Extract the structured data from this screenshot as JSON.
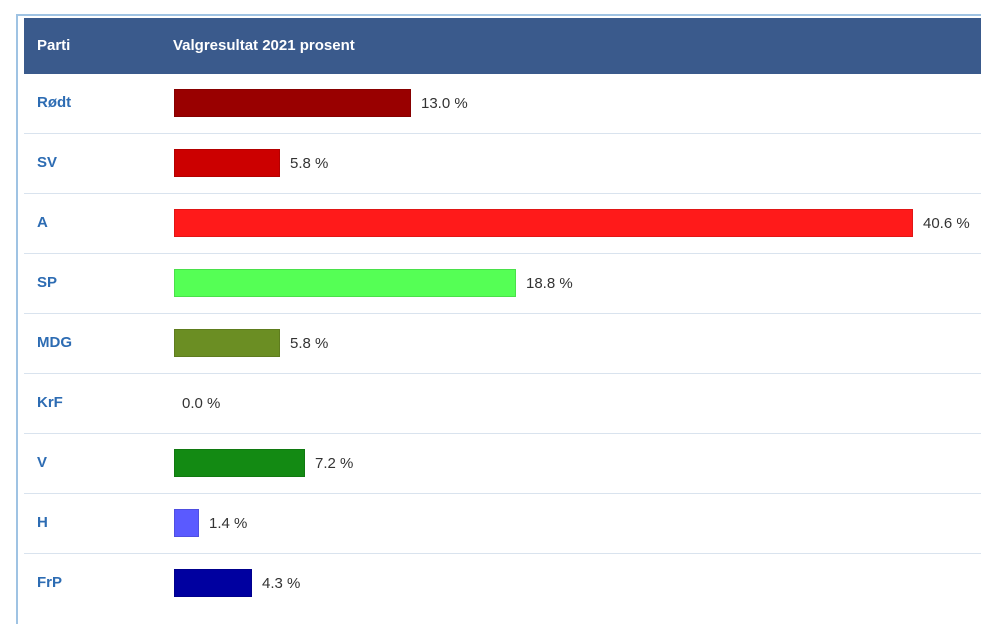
{
  "table": {
    "header_party": "Parti",
    "header_result": "Valgresultat 2021 prosent"
  },
  "chart_data": {
    "type": "bar",
    "orientation": "horizontal",
    "title": "",
    "xlabel": "",
    "ylabel": "",
    "xlim": [
      0,
      40.6
    ],
    "categories": [
      "Rødt",
      "SV",
      "A",
      "SP",
      "MDG",
      "KrF",
      "V",
      "H",
      "FrP"
    ],
    "values": [
      13.0,
      5.8,
      40.6,
      18.8,
      5.8,
      0.0,
      7.2,
      1.4,
      4.3
    ],
    "labels": [
      "13.0 %",
      "5.8 %",
      "40.6 %",
      "18.8 %",
      "5.8 %",
      "0.0 %",
      "7.2 %",
      "1.4 %",
      "4.3 %"
    ],
    "colors": [
      "#990000",
      "#cc0000",
      "#ff1a1a",
      "#55ff55",
      "#6b8e23",
      "#ffff00",
      "#138a13",
      "#5a5aff",
      "#0000a0"
    ],
    "grid": false,
    "legend": "none"
  }
}
